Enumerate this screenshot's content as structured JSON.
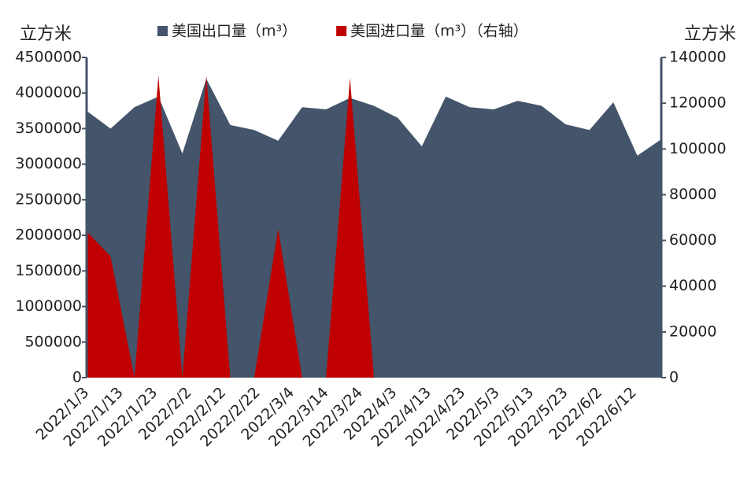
{
  "chart_data": {
    "type": "area",
    "y_label": "立方米",
    "y2_label": "立方米",
    "x": [
      "2022/1/3",
      "2022/1/10",
      "2022/1/17",
      "2022/1/24",
      "2022/1/31",
      "2022/2/7",
      "2022/2/14",
      "2022/2/21",
      "2022/2/28",
      "2022/3/7",
      "2022/3/14",
      "2022/3/21",
      "2022/3/28",
      "2022/4/4",
      "2022/4/11",
      "2022/4/18",
      "2022/4/25",
      "2022/5/2",
      "2022/5/9",
      "2022/5/16",
      "2022/5/23",
      "2022/5/30",
      "2022/6/6",
      "2022/6/13",
      "2022/6/20"
    ],
    "xlim": [
      "2022/1/3",
      "2022/6/20"
    ],
    "xticks": [
      "2022/1/3",
      "2022/1/13",
      "2022/1/23",
      "2022/2/2",
      "2022/2/12",
      "2022/2/22",
      "2022/3/4",
      "2022/3/14",
      "2022/3/24",
      "2022/4/3",
      "2022/4/13",
      "2022/4/23",
      "2022/5/3",
      "2022/5/13",
      "2022/5/23",
      "2022/6/2",
      "2022/6/12"
    ],
    "series": [
      {
        "name": "美国出口量（m³）",
        "color": "#44546a",
        "values": [
          3750000,
          3500000,
          3800000,
          3950000,
          3150000,
          4200000,
          3550000,
          3480000,
          3330000,
          3800000,
          3770000,
          3930000,
          3820000,
          3650000,
          3250000,
          3950000,
          3800000,
          3770000,
          3890000,
          3820000,
          3560000,
          3480000,
          3870000,
          3120000,
          3350000
        ]
      },
      {
        "name": "美国进口量（m³）（右轴）",
        "color": "#c00000",
        "axis": "y2",
        "values": [
          64000,
          53000,
          0,
          132000,
          0,
          132000,
          0,
          0,
          65000,
          0,
          0,
          131000,
          0,
          null,
          null,
          null,
          null,
          null,
          null,
          null,
          null,
          null,
          null,
          null,
          null
        ]
      }
    ],
    "ylim": [
      0,
      4500000
    ],
    "yticks": [
      0,
      500000,
      1000000,
      1500000,
      2000000,
      2500000,
      3000000,
      3500000,
      4000000,
      4500000
    ],
    "y2lim": [
      0,
      140000
    ],
    "y2ticks": [
      0,
      20000,
      40000,
      60000,
      80000,
      100000,
      120000,
      140000
    ],
    "legend": "top"
  }
}
